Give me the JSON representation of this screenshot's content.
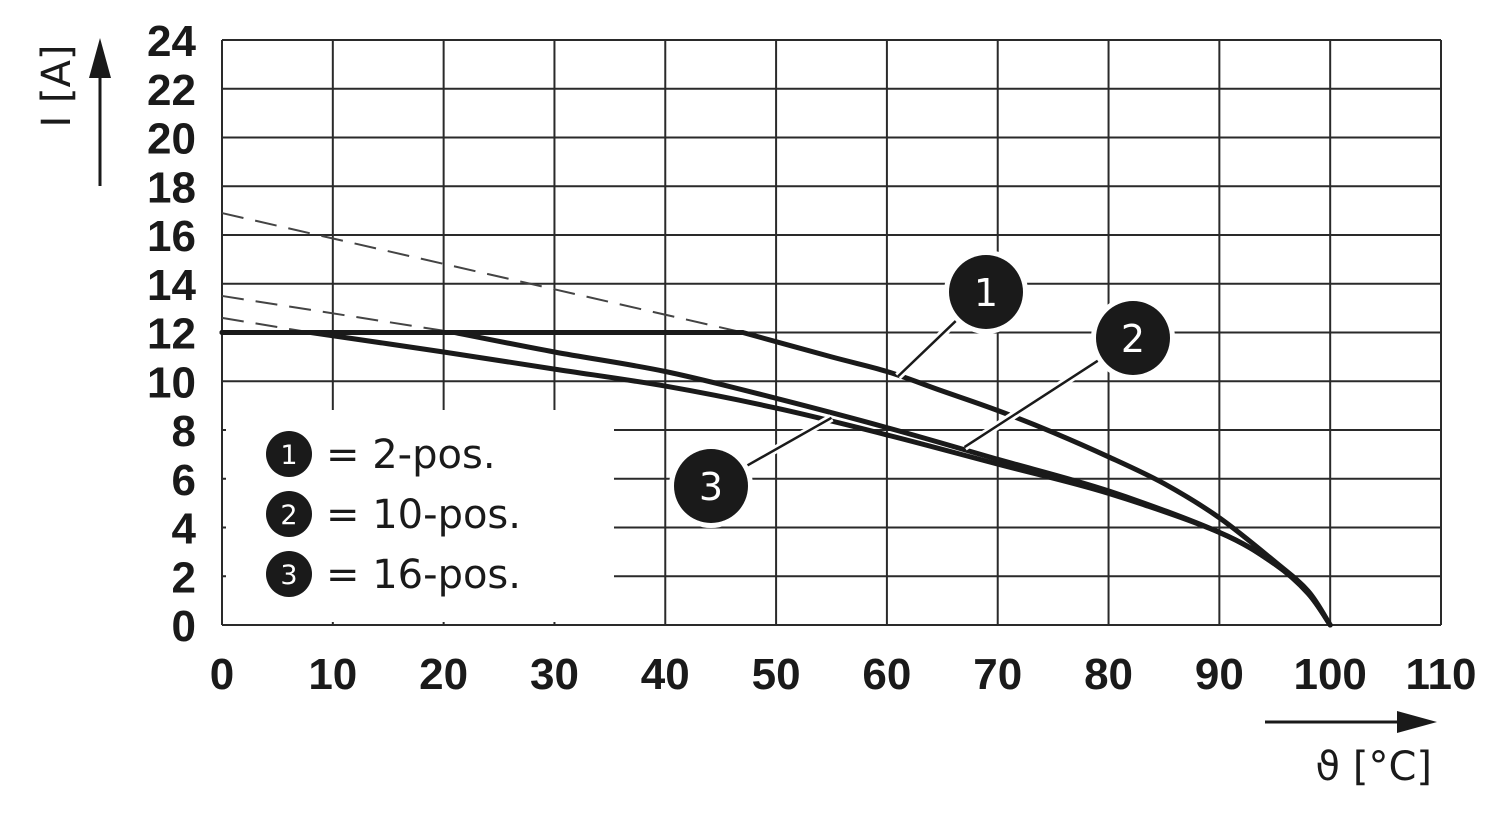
{
  "chart_data": {
    "type": "line",
    "x_axis": {
      "label": "ϑ [°C]",
      "min": 0,
      "max": 110,
      "step": 10,
      "ticks": [
        "0",
        "10",
        "20",
        "30",
        "40",
        "50",
        "60",
        "70",
        "80",
        "90",
        "100",
        "110"
      ]
    },
    "y_axis": {
      "label": "I [A]",
      "min": 0,
      "max": 24,
      "step": 2,
      "ticks": [
        "0",
        "2",
        "4",
        "6",
        "8",
        "10",
        "12",
        "14",
        "16",
        "18",
        "20",
        "22",
        "24"
      ]
    },
    "grid": true,
    "series": [
      {
        "name": "2-pos.",
        "marker": "1",
        "color": "#1a1a1a",
        "x": [
          0,
          47,
          55,
          60,
          65,
          70,
          75,
          80,
          85,
          90,
          95,
          98,
          100
        ],
        "y": [
          12,
          12,
          11.0,
          10.4,
          9.6,
          8.8,
          7.9,
          6.9,
          5.8,
          4.4,
          2.6,
          1.4,
          0
        ],
        "extrapolated": {
          "x": [
            0,
            47
          ],
          "y": [
            16.9,
            12
          ]
        }
      },
      {
        "name": "10-pos.",
        "marker": "2",
        "color": "#1a1a1a",
        "x": [
          0,
          21,
          30,
          40,
          50,
          60,
          70,
          80,
          90,
          95,
          98,
          100
        ],
        "y": [
          12,
          12,
          11.2,
          10.4,
          9.3,
          8.1,
          6.8,
          5.5,
          3.8,
          2.5,
          1.3,
          0
        ],
        "extrapolated": {
          "x": [
            0,
            21
          ],
          "y": [
            13.5,
            12
          ]
        }
      },
      {
        "name": "16-pos.",
        "marker": "3",
        "color": "#1a1a1a",
        "x": [
          0,
          8,
          20,
          30,
          40,
          50,
          60,
          70,
          80,
          90,
          95,
          98,
          100
        ],
        "y": [
          12,
          12,
          11.2,
          10.5,
          9.8,
          8.9,
          7.8,
          6.6,
          5.4,
          3.8,
          2.5,
          1.3,
          0
        ],
        "extrapolated": {
          "x": [
            0,
            8
          ],
          "y": [
            12.6,
            12
          ]
        }
      }
    ],
    "legend": {
      "position": "bottom-left",
      "entries": [
        {
          "marker": "1",
          "text": "= 2-pos."
        },
        {
          "marker": "2",
          "text": "= 10-pos."
        },
        {
          "marker": "3",
          "text": "= 16-pos."
        }
      ]
    },
    "callouts": [
      {
        "marker": "1",
        "series": 0,
        "target_x": 61,
        "target_y": 10.2
      },
      {
        "marker": "2",
        "series": 1,
        "target_x": 67,
        "target_y": 7.3
      },
      {
        "marker": "3",
        "series": 2,
        "target_x": 55,
        "target_y": 8.5
      }
    ]
  }
}
